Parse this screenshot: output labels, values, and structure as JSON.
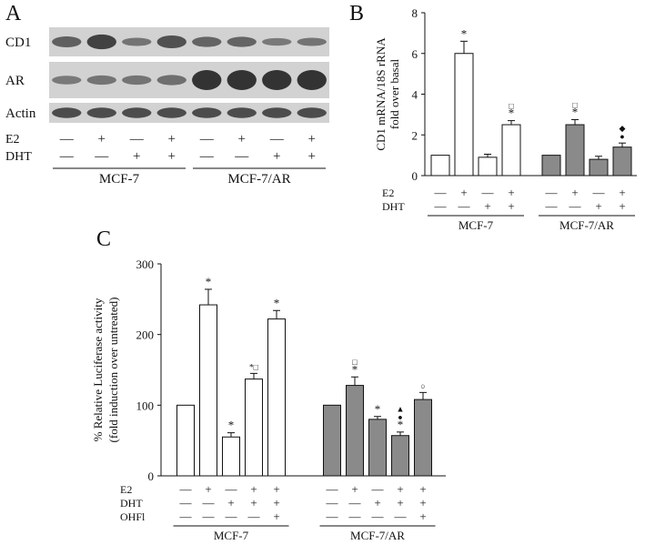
{
  "panel_labels": {
    "a": "A",
    "b": "B",
    "c": "C"
  },
  "groups": [
    "MCF-7",
    "MCF-7/AR"
  ],
  "signs": {
    "plus": "+",
    "minus": "—"
  },
  "colors": {
    "white_bar": "#ffffff",
    "gray_bar": "#8a8a8a",
    "axis": "#111111",
    "blot_bg": "#d2d2d2",
    "band": "#2a2a2a"
  },
  "panel_a": {
    "blot_rows": [
      {
        "label": "CD1",
        "intensity": [
          0.55,
          0.85,
          0.35,
          0.7,
          0.5,
          0.5,
          0.3,
          0.35
        ]
      },
      {
        "label": "AR",
        "intensity": [
          0.3,
          0.35,
          0.35,
          0.4,
          1.0,
          1.0,
          1.0,
          1.0
        ]
      },
      {
        "label": "Actin",
        "intensity": [
          0.75,
          0.75,
          0.75,
          0.75,
          0.75,
          0.75,
          0.75,
          0.75
        ]
      }
    ],
    "treatments": [
      {
        "label": "E2",
        "values": [
          "-",
          "+",
          "-",
          "+",
          "-",
          "+",
          "-",
          "+"
        ]
      },
      {
        "label": "DHT",
        "values": [
          "-",
          "-",
          "+",
          "+",
          "-",
          "-",
          "+",
          "+"
        ]
      }
    ]
  },
  "chart_data": [
    {
      "panel": "B",
      "type": "bar",
      "ylabel": "CD1 mRNA/18S rRNA fold over basal",
      "ylabel_lines": [
        "CD1 mRNA/18S rRNA",
        "fold over basal"
      ],
      "ylim": [
        0,
        8
      ],
      "yticks": [
        "0",
        "2",
        "4",
        "6",
        "8"
      ],
      "grid": false,
      "treatments": [
        {
          "label": "E2",
          "values": [
            "-",
            "+",
            "-",
            "+",
            "-",
            "+",
            "-",
            "+"
          ]
        },
        {
          "label": "DHT",
          "values": [
            "-",
            "-",
            "+",
            "+",
            "-",
            "-",
            "+",
            "+"
          ]
        }
      ],
      "series": [
        {
          "group": "MCF-7",
          "values": [
            1.0,
            6.0,
            0.9,
            2.5
          ],
          "errors": [
            0,
            0.6,
            0.15,
            0.2
          ],
          "marks": [
            [],
            [
              "*"
            ],
            [],
            [
              "*",
              "□"
            ]
          ]
        },
        {
          "group": "MCF-7/AR",
          "values": [
            1.0,
            2.5,
            0.8,
            1.4
          ],
          "errors": [
            0,
            0.25,
            0.15,
            0.2
          ],
          "marks": [
            [],
            [
              "*",
              "□"
            ],
            [],
            [
              "●",
              "◆"
            ]
          ]
        }
      ]
    },
    {
      "panel": "C",
      "type": "bar",
      "ylabel": "% Relative Luciferase activity (fold induction over untreated)",
      "ylabel_lines": [
        "% Relative Luciferase activity",
        "(fold induction over untreated)"
      ],
      "ylim": [
        0,
        300
      ],
      "yticks": [
        "0",
        "100",
        "200",
        "300"
      ],
      "grid": false,
      "treatments": [
        {
          "label": "E2",
          "values": [
            "-",
            "+",
            "-",
            "+",
            "+",
            "-",
            "+",
            "-",
            "+",
            "+"
          ]
        },
        {
          "label": "DHT",
          "values": [
            "-",
            "-",
            "+",
            "+",
            "+",
            "-",
            "-",
            "+",
            "+",
            "+"
          ]
        },
        {
          "label": "OHFl",
          "values": [
            "-",
            "-",
            "-",
            "-",
            "+",
            "-",
            "-",
            "-",
            "-",
            "+"
          ]
        }
      ],
      "series": [
        {
          "group": "MCF-7",
          "values": [
            100,
            242,
            55,
            137,
            222
          ],
          "errors": [
            0,
            22,
            6,
            8,
            12
          ],
          "marks": [
            [],
            [
              "*"
            ],
            [
              "*"
            ],
            [
              "*□"
            ],
            [
              "*"
            ]
          ]
        },
        {
          "group": "MCF-7/AR",
          "values": [
            100,
            128,
            80,
            57,
            108
          ],
          "errors": [
            0,
            12,
            4,
            5,
            10
          ],
          "marks": [
            [],
            [
              "*",
              "□"
            ],
            [
              "*"
            ],
            [
              "*",
              "●",
              "▲"
            ],
            [
              "○"
            ]
          ]
        }
      ]
    }
  ]
}
